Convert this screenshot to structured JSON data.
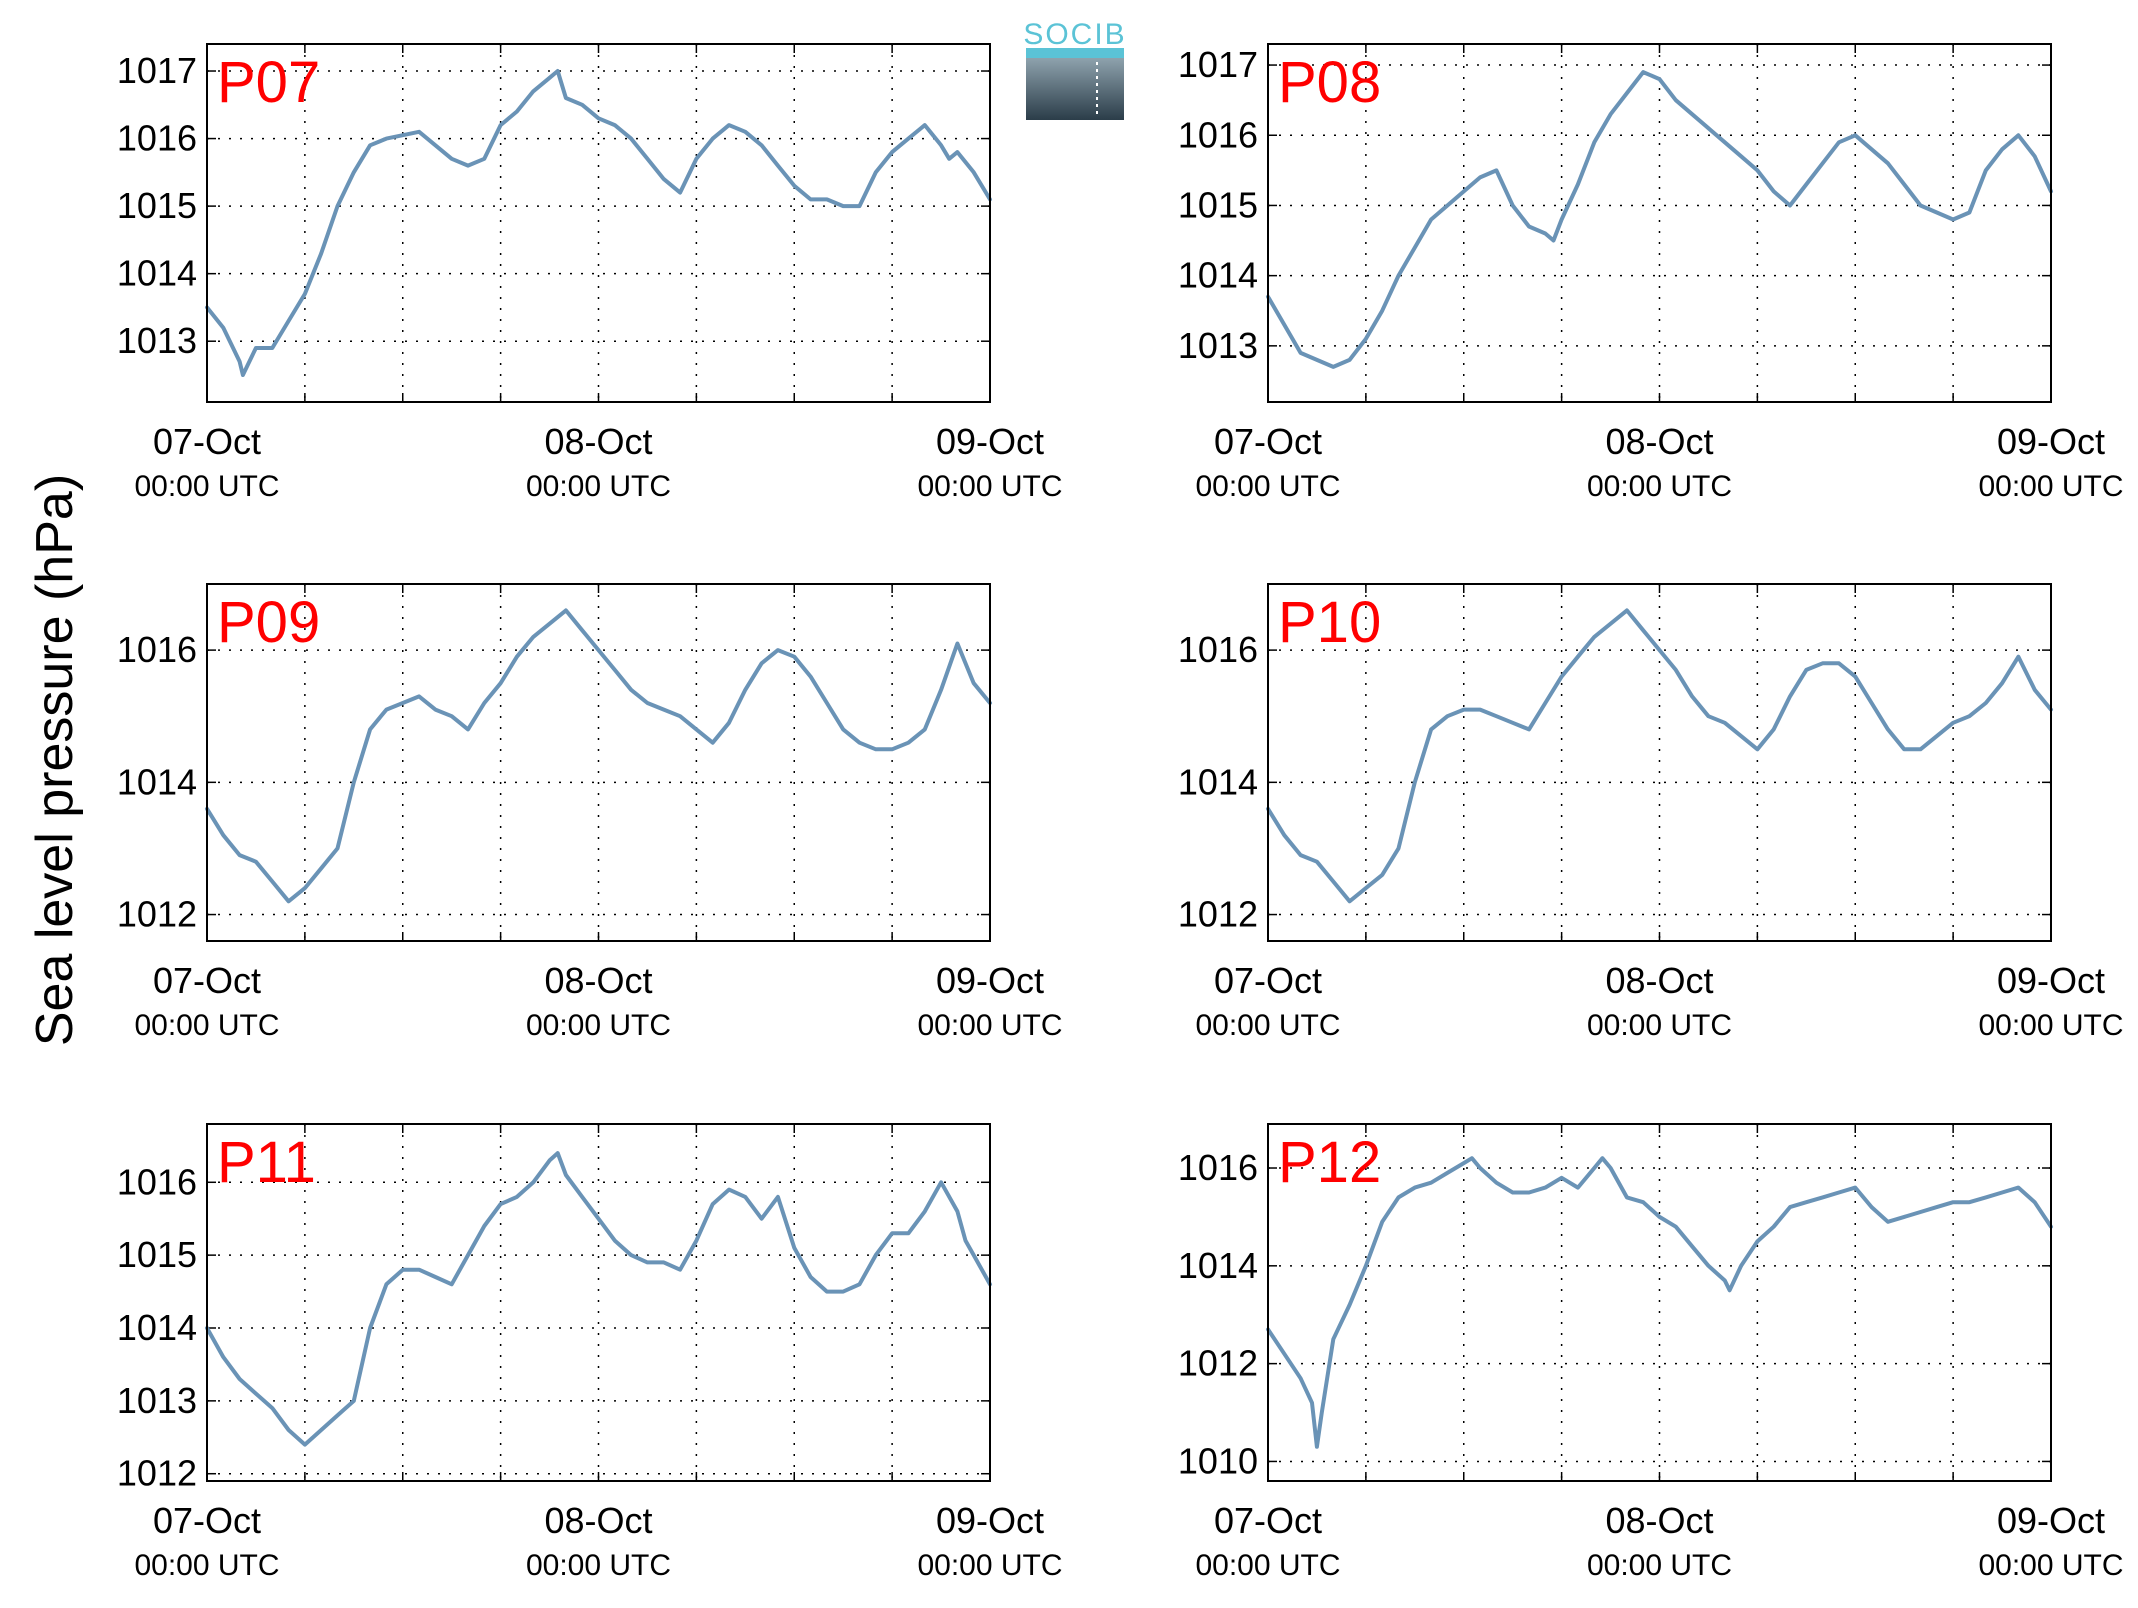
{
  "figure": {
    "ylabel": "Sea level pressure (hPa)",
    "logo_text": "SOCIB"
  },
  "colors": {
    "line": "#6a93b6",
    "panel_label": "#ff0000",
    "logo": "#5bc3d6"
  },
  "chart_data": [
    {
      "type": "line",
      "panel_label": "P07",
      "xlim": [
        0,
        48
      ],
      "ylim": [
        1012.1,
        1017.4
      ],
      "yticks": [
        1013,
        1014,
        1015,
        1016,
        1017
      ],
      "grid": true,
      "x_tick_labels": [
        {
          "x": 0,
          "date": "07-Oct",
          "time": "00:00 UTC"
        },
        {
          "x": 24,
          "date": "08-Oct",
          "time": "00:00 UTC"
        },
        {
          "x": 48,
          "date": "09-Oct",
          "time": "00:00 UTC"
        }
      ],
      "x": [
        0,
        1,
        2,
        2.2,
        3,
        4,
        5,
        6,
        7,
        8,
        9,
        10,
        11,
        12,
        13,
        14,
        15,
        16,
        17,
        18,
        19,
        20,
        21,
        21.5,
        22,
        23,
        24,
        25,
        26,
        27,
        28,
        29,
        30,
        31,
        32,
        33,
        34,
        35,
        36,
        37,
        38,
        39,
        40,
        41,
        42,
        43,
        44,
        45,
        45.5,
        46,
        47,
        48
      ],
      "values": [
        1013.5,
        1013.2,
        1012.7,
        1012.5,
        1012.9,
        1012.9,
        1013.3,
        1013.7,
        1014.3,
        1015.0,
        1015.5,
        1015.9,
        1016.0,
        1016.05,
        1016.1,
        1015.9,
        1015.7,
        1015.6,
        1015.7,
        1016.2,
        1016.4,
        1016.7,
        1016.9,
        1017.0,
        1016.6,
        1016.5,
        1016.3,
        1016.2,
        1016.0,
        1015.7,
        1015.4,
        1015.2,
        1015.7,
        1016.0,
        1016.2,
        1016.1,
        1015.9,
        1015.6,
        1015.3,
        1015.1,
        1015.1,
        1015.0,
        1015.0,
        1015.5,
        1015.8,
        1016.0,
        1016.2,
        1015.9,
        1015.7,
        1015.8,
        1015.5,
        1015.1
      ]
    },
    {
      "type": "line",
      "panel_label": "P08",
      "xlim": [
        0,
        48
      ],
      "ylim": [
        1012.2,
        1017.3
      ],
      "yticks": [
        1013,
        1014,
        1015,
        1016,
        1017
      ],
      "grid": true,
      "x_tick_labels": [
        {
          "x": 0,
          "date": "07-Oct",
          "time": "00:00 UTC"
        },
        {
          "x": 24,
          "date": "08-Oct",
          "time": "00:00 UTC"
        },
        {
          "x": 48,
          "date": "09-Oct",
          "time": "00:00 UTC"
        }
      ],
      "x": [
        0,
        1,
        2,
        3,
        4,
        5,
        6,
        7,
        8,
        9,
        10,
        11,
        12,
        13,
        14,
        15,
        16,
        17,
        17.5,
        18,
        19,
        20,
        21,
        22,
        23,
        24,
        25,
        26,
        27,
        28,
        29,
        30,
        31,
        32,
        33,
        34,
        35,
        36,
        37,
        38,
        39,
        40,
        41,
        42,
        43,
        43.5,
        44,
        45,
        46,
        47,
        48
      ],
      "values": [
        1013.7,
        1013.3,
        1012.9,
        1012.8,
        1012.7,
        1012.8,
        1013.1,
        1013.5,
        1014.0,
        1014.4,
        1014.8,
        1015.0,
        1015.2,
        1015.4,
        1015.5,
        1015.0,
        1014.7,
        1014.6,
        1014.5,
        1014.8,
        1015.3,
        1015.9,
        1016.3,
        1016.6,
        1016.9,
        1016.8,
        1016.5,
        1016.3,
        1016.1,
        1015.9,
        1015.7,
        1015.5,
        1015.2,
        1015.0,
        1015.3,
        1015.6,
        1015.9,
        1016.0,
        1015.8,
        1015.6,
        1015.3,
        1015.0,
        1014.9,
        1014.8,
        1014.9,
        1015.2,
        1015.5,
        1015.8,
        1016.0,
        1015.7,
        1015.2
      ]
    },
    {
      "type": "line",
      "panel_label": "P09",
      "xlim": [
        0,
        48
      ],
      "ylim": [
        1011.6,
        1017.0
      ],
      "yticks": [
        1012,
        1014,
        1016
      ],
      "grid": true,
      "x_tick_labels": [
        {
          "x": 0,
          "date": "07-Oct",
          "time": "00:00 UTC"
        },
        {
          "x": 24,
          "date": "08-Oct",
          "time": "00:00 UTC"
        },
        {
          "x": 48,
          "date": "09-Oct",
          "time": "00:00 UTC"
        }
      ],
      "x": [
        0,
        1,
        2,
        3,
        4,
        5,
        6,
        7,
        8,
        9,
        10,
        11,
        12,
        13,
        14,
        15,
        16,
        17,
        18,
        19,
        20,
        21,
        22,
        23,
        24,
        25,
        26,
        27,
        28,
        29,
        30,
        31,
        32,
        33,
        34,
        35,
        36,
        37,
        38,
        39,
        40,
        41,
        42,
        43,
        44,
        45,
        46,
        47,
        48
      ],
      "values": [
        1013.6,
        1013.2,
        1012.9,
        1012.8,
        1012.5,
        1012.2,
        1012.4,
        1012.7,
        1013.0,
        1014.0,
        1014.8,
        1015.1,
        1015.2,
        1015.3,
        1015.1,
        1015.0,
        1014.8,
        1015.2,
        1015.5,
        1015.9,
        1016.2,
        1016.4,
        1016.6,
        1016.3,
        1016.0,
        1015.7,
        1015.4,
        1015.2,
        1015.1,
        1015.0,
        1014.8,
        1014.6,
        1014.9,
        1015.4,
        1015.8,
        1016.0,
        1015.9,
        1015.6,
        1015.2,
        1014.8,
        1014.6,
        1014.5,
        1014.5,
        1014.6,
        1014.8,
        1015.4,
        1016.1,
        1015.5,
        1015.2
      ]
    },
    {
      "type": "line",
      "panel_label": "P10",
      "xlim": [
        0,
        48
      ],
      "ylim": [
        1011.6,
        1017.0
      ],
      "yticks": [
        1012,
        1014,
        1016
      ],
      "grid": true,
      "x_tick_labels": [
        {
          "x": 0,
          "date": "07-Oct",
          "time": "00:00 UTC"
        },
        {
          "x": 24,
          "date": "08-Oct",
          "time": "00:00 UTC"
        },
        {
          "x": 48,
          "date": "09-Oct",
          "time": "00:00 UTC"
        }
      ],
      "x": [
        0,
        1,
        2,
        3,
        4,
        5,
        6,
        7,
        8,
        9,
        10,
        11,
        12,
        13,
        14,
        15,
        16,
        17,
        18,
        19,
        20,
        21,
        22,
        23,
        24,
        25,
        26,
        27,
        28,
        29,
        30,
        31,
        32,
        33,
        34,
        35,
        36,
        37,
        38,
        39,
        40,
        41,
        42,
        43,
        44,
        45,
        46,
        47,
        48
      ],
      "values": [
        1013.6,
        1013.2,
        1012.9,
        1012.8,
        1012.5,
        1012.2,
        1012.4,
        1012.6,
        1013.0,
        1014.0,
        1014.8,
        1015.0,
        1015.1,
        1015.1,
        1015.0,
        1014.9,
        1014.8,
        1015.2,
        1015.6,
        1015.9,
        1016.2,
        1016.4,
        1016.6,
        1016.3,
        1016.0,
        1015.7,
        1015.3,
        1015.0,
        1014.9,
        1014.7,
        1014.5,
        1014.8,
        1015.3,
        1015.7,
        1015.8,
        1015.8,
        1015.6,
        1015.2,
        1014.8,
        1014.5,
        1014.5,
        1014.7,
        1014.9,
        1015.0,
        1015.2,
        1015.5,
        1015.9,
        1015.4,
        1015.1
      ]
    },
    {
      "type": "line",
      "panel_label": "P11",
      "xlim": [
        0,
        48
      ],
      "ylim": [
        1011.9,
        1016.8
      ],
      "yticks": [
        1012,
        1013,
        1014,
        1015,
        1016
      ],
      "grid": true,
      "x_tick_labels": [
        {
          "x": 0,
          "date": "07-Oct",
          "time": "00:00 UTC"
        },
        {
          "x": 24,
          "date": "08-Oct",
          "time": "00:00 UTC"
        },
        {
          "x": 48,
          "date": "09-Oct",
          "time": "00:00 UTC"
        }
      ],
      "x": [
        0,
        1,
        2,
        3,
        4,
        5,
        6,
        7,
        8,
        9,
        10,
        11,
        12,
        13,
        14,
        15,
        16,
        17,
        18,
        19,
        20,
        21,
        21.5,
        22,
        23,
        24,
        25,
        26,
        27,
        28,
        29,
        30,
        31,
        32,
        33,
        34,
        35,
        36,
        37,
        38,
        39,
        40,
        41,
        42,
        43,
        44,
        45,
        46,
        46.5,
        47,
        48
      ],
      "values": [
        1014.0,
        1013.6,
        1013.3,
        1013.1,
        1012.9,
        1012.6,
        1012.4,
        1012.6,
        1012.8,
        1013.0,
        1014.0,
        1014.6,
        1014.8,
        1014.8,
        1014.7,
        1014.6,
        1015.0,
        1015.4,
        1015.7,
        1015.8,
        1016.0,
        1016.3,
        1016.4,
        1016.1,
        1015.8,
        1015.5,
        1015.2,
        1015.0,
        1014.9,
        1014.9,
        1014.8,
        1015.2,
        1015.7,
        1015.9,
        1015.8,
        1015.5,
        1015.8,
        1015.1,
        1014.7,
        1014.5,
        1014.5,
        1014.6,
        1015.0,
        1015.3,
        1015.3,
        1015.6,
        1016.0,
        1015.6,
        1015.2,
        1015.0,
        1014.6
      ]
    },
    {
      "type": "line",
      "panel_label": "P12",
      "xlim": [
        0,
        48
      ],
      "ylim": [
        1009.6,
        1016.9
      ],
      "yticks": [
        1010,
        1012,
        1014,
        1016
      ],
      "grid": true,
      "x_tick_labels": [
        {
          "x": 0,
          "date": "07-Oct",
          "time": "00:00 UTC"
        },
        {
          "x": 24,
          "date": "08-Oct",
          "time": "00:00 UTC"
        },
        {
          "x": 48,
          "date": "09-Oct",
          "time": "00:00 UTC"
        }
      ],
      "x": [
        0,
        1,
        2,
        2.7,
        3,
        3.3,
        4,
        5,
        6,
        7,
        8,
        9,
        10,
        11,
        12,
        12.5,
        13,
        14,
        15,
        16,
        17,
        18,
        19,
        20,
        20.5,
        21,
        22,
        23,
        24,
        25,
        26,
        27,
        28,
        28.3,
        29,
        30,
        31,
        32,
        33,
        34,
        35,
        36,
        37,
        38,
        39,
        40,
        41,
        42,
        43,
        44,
        45,
        46,
        47,
        48
      ],
      "values": [
        1012.7,
        1012.2,
        1011.7,
        1011.2,
        1010.3,
        1011.0,
        1012.5,
        1013.2,
        1014.0,
        1014.9,
        1015.4,
        1015.6,
        1015.7,
        1015.9,
        1016.1,
        1016.2,
        1016.0,
        1015.7,
        1015.5,
        1015.5,
        1015.6,
        1015.8,
        1015.6,
        1016.0,
        1016.2,
        1016.0,
        1015.4,
        1015.3,
        1015.0,
        1014.8,
        1014.4,
        1014.0,
        1013.7,
        1013.5,
        1014.0,
        1014.5,
        1014.8,
        1015.2,
        1015.3,
        1015.4,
        1015.5,
        1015.6,
        1015.2,
        1014.9,
        1015.0,
        1015.1,
        1015.2,
        1015.3,
        1015.3,
        1015.4,
        1015.5,
        1015.6,
        1015.3,
        1014.8
      ]
    }
  ]
}
